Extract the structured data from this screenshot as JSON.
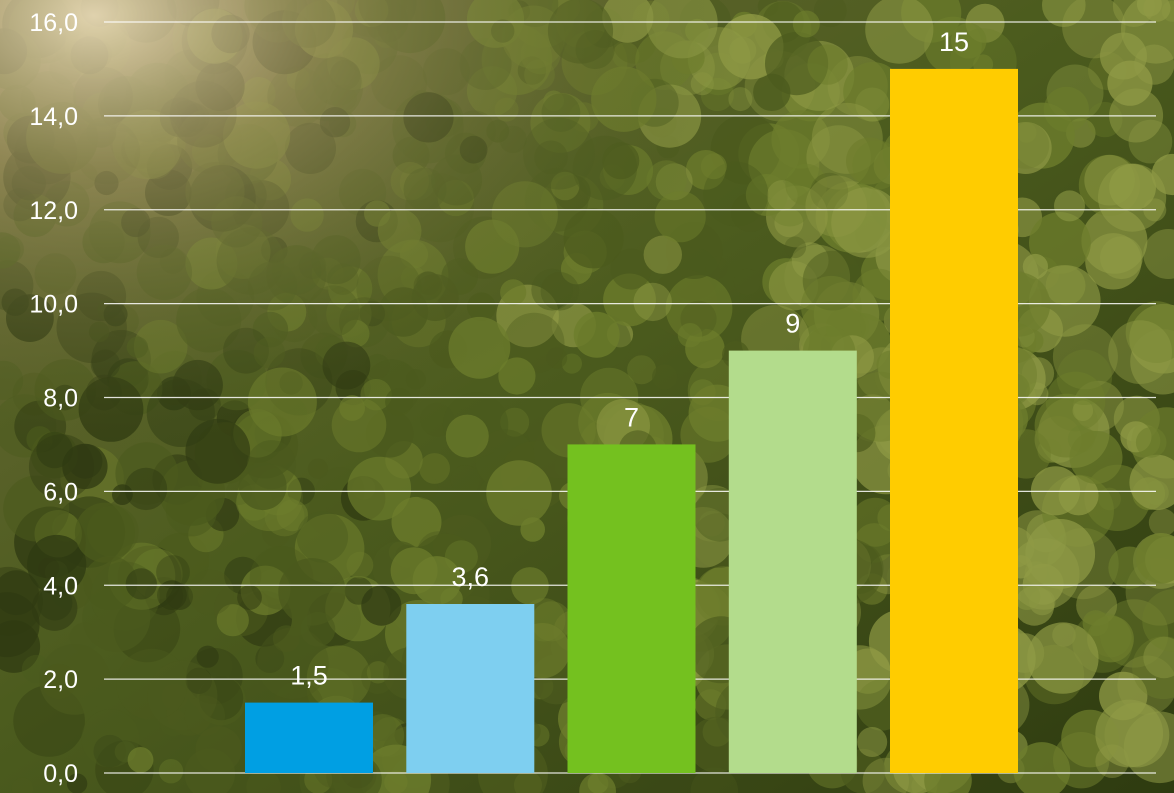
{
  "chart_data": {
    "type": "bar",
    "title": "",
    "xlabel": "",
    "ylabel": "",
    "categories": [
      "",
      "",
      "",
      "",
      ""
    ],
    "values": [
      1.5,
      3.6,
      7,
      9,
      15
    ],
    "data_labels": [
      "1,5",
      "3,6",
      "7",
      "9",
      "15"
    ],
    "bar_colors": [
      "#009fe3",
      "#7ecff0",
      "#74c11f",
      "#b3dc8c",
      "#ffcc00"
    ],
    "ylim": [
      0,
      16
    ],
    "yticks": [
      0,
      2,
      4,
      6,
      8,
      10,
      12,
      14,
      16
    ],
    "ytick_labels": [
      "0,0",
      "2,0",
      "4,0",
      "6,0",
      "8,0",
      "10,0",
      "12,0",
      "14,0",
      "16,0"
    ],
    "grid": true,
    "legend": "none"
  },
  "background": {
    "description_icon": "forest-photo-icon",
    "colors": [
      "#2f3a12",
      "#4b5a1d",
      "#6d7d2c",
      "#8f9a45",
      "#c9b98a"
    ]
  },
  "gridline_color": "#ffffff"
}
